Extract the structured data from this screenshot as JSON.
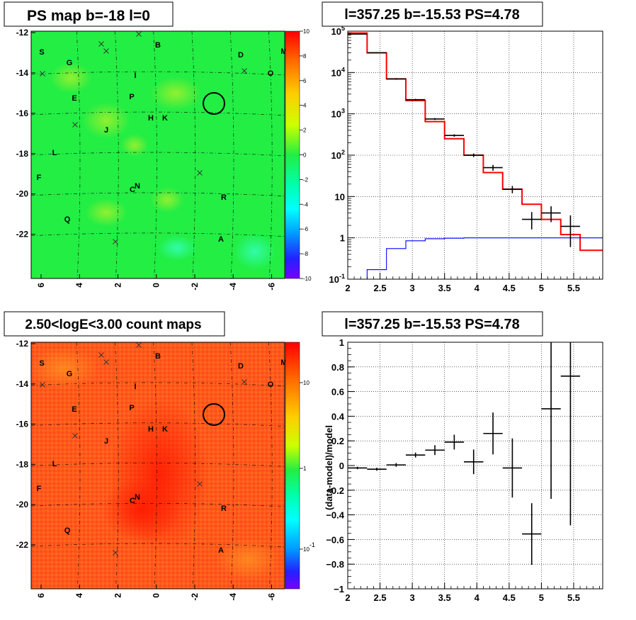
{
  "panels": {
    "tl": {
      "title": "PS map b=-18 l=0",
      "y_ticks": [
        "-12",
        "-14",
        "-16",
        "-18",
        "-20",
        "-22"
      ],
      "x_ticks": [
        "6",
        "4",
        "2",
        "0",
        "-2",
        "-4",
        "-6"
      ],
      "colorbar_ticks": [
        "10",
        "8",
        "6",
        "4",
        "2",
        "0",
        "-2",
        "-4",
        "-6",
        "-8",
        "-10"
      ],
      "background_color": "#22ee44"
    },
    "bl": {
      "title": "2.50<logE<3.00 count maps",
      "y_ticks": [
        "-12",
        "-14",
        "-16",
        "-18",
        "-20",
        "-22"
      ],
      "x_ticks": [
        "6",
        "4",
        "2",
        "0",
        "-2",
        "-4",
        "-6"
      ],
      "colorbar_ticks": [
        "10",
        "1",
        "10^-1"
      ],
      "background_color": "#ff5a1e"
    }
  },
  "source_labels": [
    "S",
    "G",
    "B",
    "D",
    "M",
    "O",
    "I",
    "E",
    "P",
    "H",
    "K",
    "J",
    "L",
    "F",
    "C",
    "N",
    "R",
    "Q",
    "A"
  ],
  "chart_data": [
    {
      "type": "step",
      "title": "l=357.25 b=-15.53 PS=4.78",
      "xlim": [
        2.0,
        5.95
      ],
      "ylim": [
        0.1,
        100000
      ],
      "y_scale": "log",
      "x_ticks": [
        2,
        2.5,
        3,
        3.5,
        4,
        4.5,
        5,
        5.5
      ],
      "y_ticks": [
        "10^-1",
        "1",
        "10",
        "10^2",
        "10^3",
        "10^4",
        "10^5"
      ],
      "grid": true,
      "bin_edges": [
        2.0,
        2.3,
        2.6,
        2.9,
        3.2,
        3.5,
        3.8,
        4.1,
        4.4,
        4.7,
        5.0,
        5.3,
        5.6,
        5.95
      ],
      "series": [
        {
          "color": "#ff0000",
          "values": [
            90000,
            30000,
            7000,
            2100,
            650,
            250,
            100,
            38,
            15,
            6.5,
            2.8,
            1.2,
            0.5
          ]
        },
        {
          "color": "#0000ff",
          "values": [
            0.1,
            0.17,
            0.55,
            0.85,
            0.95,
            0.98,
            1.0,
            1.0,
            1.0,
            1.0,
            1.0,
            1.0,
            1.0
          ]
        },
        {
          "color": "#000000",
          "kind": "data_points",
          "x": [
            2.15,
            2.45,
            2.75,
            3.05,
            3.35,
            3.65,
            3.95,
            4.25,
            4.55,
            4.85,
            5.15,
            5.45
          ],
          "y": [
            85000,
            30000,
            7000,
            2200,
            750,
            300,
            100,
            50,
            15,
            2.8,
            4,
            1.9
          ],
          "err_lo": [
            1500,
            800,
            300,
            100,
            40,
            20,
            10,
            8,
            3,
            1.2,
            1.6,
            1.3
          ],
          "err_hi": [
            1500,
            800,
            300,
            100,
            40,
            20,
            10,
            8,
            3,
            1.4,
            1.8,
            1.6
          ]
        }
      ]
    },
    {
      "type": "scatter",
      "title": "l=357.25 b=-15.53 PS=4.78",
      "ylabel": "(data-model)/model",
      "xlim": [
        2.0,
        5.95
      ],
      "ylim": [
        -1,
        1
      ],
      "x_ticks": [
        2,
        2.5,
        3,
        3.5,
        4,
        4.5,
        5,
        5.5
      ],
      "y_ticks": [
        -1,
        -0.8,
        -0.6,
        -0.4,
        -0.2,
        0,
        0.2,
        0.4,
        0.6,
        0.8,
        1
      ],
      "grid": true,
      "x": [
        2.15,
        2.45,
        2.75,
        3.05,
        3.35,
        3.65,
        3.95,
        4.25,
        4.55,
        4.85,
        5.15,
        5.45
      ],
      "y": [
        -0.02,
        -0.03,
        0.005,
        0.085,
        0.125,
        0.19,
        0.03,
        0.26,
        -0.02,
        -0.555,
        0.46,
        0.725
      ],
      "err": [
        0.01,
        0.012,
        0.015,
        0.02,
        0.04,
        0.06,
        0.1,
        0.17,
        0.24,
        0.25,
        0.73,
        1.21
      ]
    }
  ]
}
